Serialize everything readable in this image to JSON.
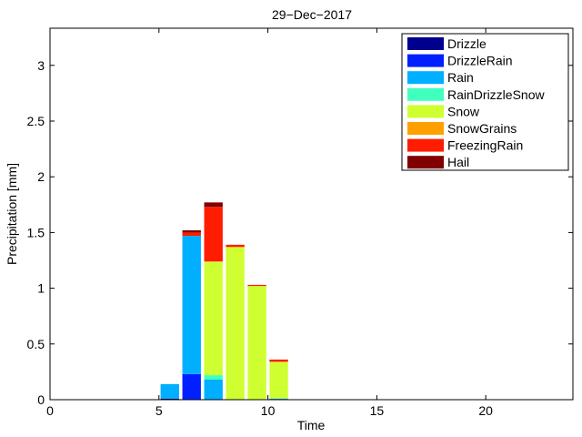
{
  "chart_data": {
    "type": "bar",
    "stacked": true,
    "title": "29−Dec−2017",
    "xlabel": "Time",
    "ylabel": "Precipitation [mm]",
    "xlim": [
      0,
      24
    ],
    "ylim": [
      0,
      3.3333
    ],
    "xticks": [
      0,
      5,
      10,
      15,
      20
    ],
    "yticks": [
      0,
      0.5,
      1,
      1.5,
      2,
      2.5,
      3
    ],
    "ytick_labels": [
      "0",
      "0.5",
      "1",
      "1.5",
      "2",
      "2.5",
      "3"
    ],
    "xtick_labels": [
      "0",
      "5",
      "10",
      "15",
      "20"
    ],
    "legend_position": "top-right",
    "bar_width": 0.85,
    "x": [
      0.5,
      1.5,
      2.5,
      3.5,
      4.5,
      5.5,
      6.5,
      7.5,
      8.5,
      9.5,
      10.5,
      11.5,
      12.5,
      13.5,
      14.5,
      15.5,
      16.5,
      17.5,
      18.5,
      19.5,
      20.5,
      21.5,
      22.5,
      23.5
    ],
    "series": [
      {
        "name": "Drizzle",
        "color": "#00008f",
        "values": [
          0,
          0,
          0,
          0,
          0,
          0.01,
          0,
          0,
          0,
          0,
          0,
          0,
          0,
          0,
          0,
          0,
          0,
          0,
          0,
          0,
          0,
          0,
          0,
          0
        ]
      },
      {
        "name": "DrizzleRain",
        "color": "#0020ff",
        "values": [
          0,
          0,
          0,
          0,
          0,
          0,
          0.23,
          0,
          0,
          0,
          0,
          0,
          0,
          0,
          0,
          0,
          0,
          0,
          0,
          0,
          0,
          0,
          0,
          0
        ]
      },
      {
        "name": "Rain",
        "color": "#00afff",
        "values": [
          0,
          0,
          0,
          0,
          0,
          0.13,
          1.24,
          0.18,
          0,
          0,
          0.01,
          0,
          0,
          0,
          0,
          0,
          0,
          0,
          0,
          0,
          0,
          0,
          0,
          0
        ]
      },
      {
        "name": "RainDrizzleSnow",
        "color": "#40ffbf",
        "values": [
          0,
          0,
          0,
          0,
          0,
          0,
          0,
          0.04,
          0,
          0,
          0,
          0,
          0,
          0,
          0,
          0,
          0,
          0,
          0,
          0,
          0,
          0,
          0,
          0
        ]
      },
      {
        "name": "Snow",
        "color": "#cfff30",
        "values": [
          0,
          0,
          0,
          0,
          0,
          0,
          0,
          1.02,
          1.37,
          1.02,
          0.33,
          0,
          0,
          0,
          0,
          0,
          0,
          0,
          0,
          0,
          0,
          0,
          0,
          0
        ]
      },
      {
        "name": "SnowGrains",
        "color": "#ffa000",
        "values": [
          0,
          0,
          0,
          0,
          0,
          0,
          0,
          0,
          0,
          0,
          0,
          0,
          0,
          0,
          0,
          0,
          0,
          0,
          0,
          0,
          0,
          0,
          0,
          0
        ]
      },
      {
        "name": "FreezingRain",
        "color": "#ff1c00",
        "values": [
          0,
          0,
          0,
          0,
          0,
          0,
          0.03,
          0.49,
          0.02,
          0.01,
          0.02,
          0,
          0,
          0,
          0,
          0,
          0,
          0,
          0,
          0,
          0,
          0,
          0,
          0
        ]
      },
      {
        "name": "Hail",
        "color": "#800000",
        "values": [
          0,
          0,
          0,
          0,
          0,
          0,
          0.02,
          0.04,
          0,
          0,
          0,
          0,
          0,
          0,
          0,
          0,
          0,
          0,
          0,
          0,
          0,
          0,
          0,
          0
        ]
      }
    ]
  }
}
